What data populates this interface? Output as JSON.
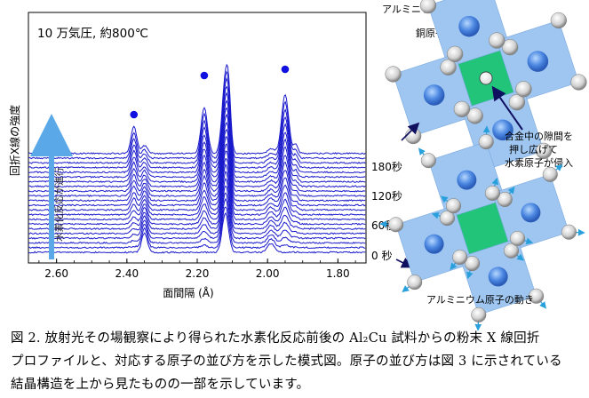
{
  "figure": {
    "condition_label": "10 万気圧, 約800℃",
    "ylabel": "回折X線の強度",
    "xlabel": "面間隔 (Å)",
    "arrow_label": "水素化反応が進行",
    "time_labels": [
      "180秒",
      "120秒",
      "60秒",
      "0 秒"
    ],
    "diagram_labels": {
      "al_atom": "アルミニウム原子",
      "cu_atom": "銅原子",
      "hydrogen_note": [
        "合金中の隙間を",
        "押し広げて",
        "水素原子が侵入"
      ],
      "al_motion": "アルミニウム原子の動き"
    },
    "colors": {
      "profile_line": "#1a1acc",
      "marker": "#1010e0",
      "arrow": "#5aa8e8",
      "cu_square": "#9ec6f0",
      "hydrogen_square": "#22c47a",
      "dark_arrow": "#101060"
    }
  },
  "chart_data": {
    "type": "line",
    "xlabel": "面間隔 (Å)",
    "ylabel": "回折X線の強度",
    "x_ticks": [
      "2.60",
      "2.40",
      "2.20",
      "2.00",
      "1.80"
    ],
    "xlim": [
      2.68,
      1.72
    ],
    "reversed_x": true,
    "n_profiles": 22,
    "time_labels": [
      "0 秒",
      "60秒",
      "120秒",
      "180秒"
    ],
    "initial_peaks_angstrom": [
      2.35,
      2.12,
      1.99
    ],
    "new_peaks_angstrom": [
      2.38,
      2.18,
      1.95
    ],
    "new_peak_markers_x": [
      2.38,
      2.18,
      1.95
    ],
    "legend": "none",
    "grid": false
  },
  "caption": {
    "lines": [
      "図 2. 放射光その場観察により得られた水素化反応前後の Al₂Cu 試料からの粉末 X 線回折",
      "プロファイルと、対応する原子の並び方を示した模式図。原子の並び方は図 3 に示されている",
      "結晶構造を上から見たものの一部を示しています。"
    ]
  }
}
